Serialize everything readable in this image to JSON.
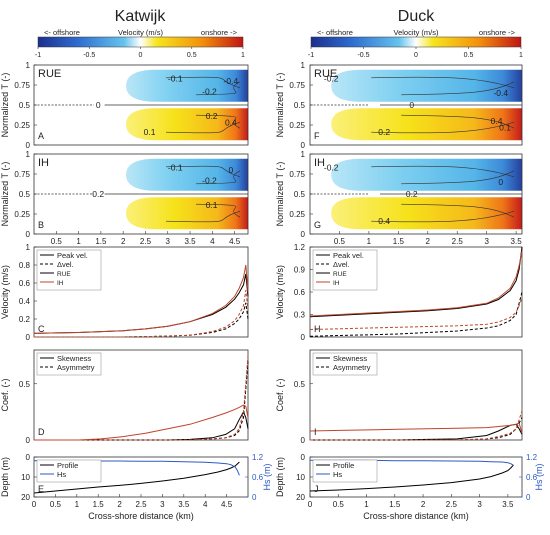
{
  "figure": {
    "columns": [
      {
        "title": "Katwijk",
        "colorbar_label": "Velocity (m/s)",
        "offshore_label": "<- offshore",
        "onshore_label": "onshore ->"
      },
      {
        "title": "Duck",
        "colorbar_label": "Velocity (m/s)",
        "offshore_label": "<- offshore",
        "onshore_label": "onshore ->"
      }
    ],
    "colorbar": {
      "ticks": [
        "-1",
        "-0.5",
        "0",
        "0.5",
        "1"
      ],
      "colors": [
        "#1b2f8f",
        "#2f6fd0",
        "#66c3ee",
        "#ffffff",
        "#f6e51d",
        "#f3900c",
        "#c21414"
      ]
    },
    "x_label": "Cross-shore distance (km)",
    "colors": {
      "series_black": "#000000",
      "series_red": "#c0442a",
      "hs_blue": "#2d59c4"
    }
  },
  "chart_data": [
    {
      "type": "heatmap",
      "panel": "A",
      "site": "Katwijk",
      "method_label": "RUE",
      "xlim": [
        0,
        4.8
      ],
      "ylim": [
        0,
        1
      ],
      "ylabel": "Normalized T (-)",
      "yticks": [
        "0",
        "0.25",
        "0.5",
        "0.75",
        "1"
      ],
      "xticks": [],
      "contour_labels": [
        "-0.1",
        "-0.2",
        "-0.4",
        "0",
        "0.2",
        "0.4",
        "0.1"
      ]
    },
    {
      "type": "heatmap",
      "panel": "B",
      "site": "Katwijk",
      "method_label": "IH",
      "xlim": [
        0,
        4.8
      ],
      "ylim": [
        0,
        1
      ],
      "ylabel": "Normalized T (-)",
      "yticks": [
        "0",
        "0.25",
        "0.5",
        "0.75",
        "1"
      ],
      "xticks": [
        "0.5",
        "1",
        "1.5",
        "2",
        "2.5",
        "3",
        "3.5",
        "4",
        "4.5"
      ],
      "contour_labels": [
        "-0.1",
        "-0.2",
        "0",
        "0.2",
        "0.1"
      ]
    },
    {
      "type": "line",
      "panel": "C",
      "site": "Katwijk",
      "ylabel": "Velocity (m/s)",
      "ylim": [
        0,
        1
      ],
      "yticks": [
        "0",
        "0.2",
        "0.4",
        "0.6",
        "0.8",
        "1"
      ],
      "xlim": [
        0,
        4.8
      ],
      "legend": [
        {
          "label": "Peak vel.",
          "style": "solid"
        },
        {
          "label": "Δvel.",
          "style": "dashed"
        },
        {
          "label": "RUE",
          "style": "black"
        },
        {
          "label": "IH",
          "style": "red"
        }
      ],
      "x": [
        0,
        0.5,
        1,
        1.5,
        2,
        2.5,
        3,
        3.5,
        4,
        4.3,
        4.5,
        4.6,
        4.7,
        4.75,
        4.8
      ],
      "series": [
        {
          "name": "RUE Peak vel.",
          "values": [
            0.04,
            0.045,
            0.05,
            0.06,
            0.07,
            0.09,
            0.12,
            0.17,
            0.25,
            0.33,
            0.42,
            0.49,
            0.58,
            0.7,
            0.45
          ]
        },
        {
          "name": "IH Peak vel.",
          "values": [
            0.04,
            0.045,
            0.05,
            0.06,
            0.07,
            0.09,
            0.12,
            0.17,
            0.26,
            0.35,
            0.45,
            0.54,
            0.66,
            0.8,
            0.5
          ]
        },
        {
          "name": "RUE Δvel.",
          "values": [
            0.0,
            0.0,
            0.0,
            0.0,
            0.0,
            0.005,
            0.01,
            0.02,
            0.05,
            0.09,
            0.15,
            0.2,
            0.28,
            0.38,
            0.2
          ]
        },
        {
          "name": "IH Δvel.",
          "values": [
            0.0,
            0.0,
            0.0,
            0.0,
            0.0,
            0.005,
            0.01,
            0.02,
            0.06,
            0.11,
            0.18,
            0.25,
            0.35,
            0.52,
            0.3
          ]
        }
      ]
    },
    {
      "type": "line",
      "panel": "D",
      "site": "Katwijk",
      "ylabel": "Coef. (-)",
      "ylim": [
        0,
        0.8
      ],
      "yticks": [
        "0",
        "0.5"
      ],
      "xlim": [
        0,
        4.8
      ],
      "legend": [
        {
          "label": "Skewness",
          "style": "solid"
        },
        {
          "label": "Asymmetry",
          "style": "dashed"
        }
      ],
      "x": [
        0,
        0.5,
        1,
        1.5,
        2,
        2.5,
        3,
        3.5,
        4,
        4.3,
        4.5,
        4.6,
        4.7,
        4.75,
        4.8
      ],
      "series": [
        {
          "name": "RUE Skewness",
          "values": [
            0.0,
            0.0,
            0.0,
            0.0,
            0.0,
            0.0,
            0.0,
            0.005,
            0.02,
            0.05,
            0.1,
            0.18,
            0.25,
            0.2,
            0.1
          ]
        },
        {
          "name": "IH Skewness",
          "values": [
            0.0,
            0.0,
            0.0,
            0.01,
            0.03,
            0.06,
            0.1,
            0.14,
            0.2,
            0.24,
            0.27,
            0.29,
            0.31,
            0.3,
            0.2
          ]
        },
        {
          "name": "RUE Asymmetry",
          "values": [
            0.0,
            0.0,
            0.0,
            0.0,
            0.0,
            0.0,
            0.0,
            0.0,
            0.01,
            0.02,
            0.04,
            0.08,
            0.2,
            0.45,
            0.7
          ]
        },
        {
          "name": "IH Asymmetry",
          "values": [
            0.0,
            0.0,
            0.0,
            0.0,
            0.0,
            0.0,
            0.0,
            0.0,
            0.01,
            0.02,
            0.05,
            0.1,
            0.25,
            0.5,
            0.75
          ]
        }
      ]
    },
    {
      "type": "line",
      "panel": "E",
      "site": "Katwijk",
      "ylabel": "Depth (m)",
      "ylabel_right": "Hs (m)",
      "ylim": [
        20,
        0
      ],
      "yticks": [
        "0",
        "10",
        "20"
      ],
      "yticks_right": [
        "0",
        "0.6",
        "1.2"
      ],
      "xlim": [
        0,
        5
      ],
      "xticks": [
        "0",
        "0.5",
        "1",
        "1.5",
        "2",
        "2.5",
        "3",
        "3.5",
        "4",
        "4.5"
      ],
      "legend": [
        {
          "label": "Profile",
          "style": "black"
        },
        {
          "label": "Hs",
          "style": "blue"
        }
      ],
      "x": [
        0,
        0.5,
        1,
        1.5,
        2,
        2.5,
        3,
        3.5,
        4,
        4.3,
        4.5,
        4.6,
        4.7,
        4.75,
        4.8
      ],
      "series": [
        {
          "name": "Profile",
          "axis": "left",
          "values": [
            18,
            17,
            16,
            15,
            14.2,
            13.2,
            12,
            10.6,
            8.8,
            7.5,
            6.3,
            5.5,
            4.5,
            3.5,
            2.5
          ]
        },
        {
          "name": "Hs",
          "axis": "right",
          "values": [
            1.09,
            1.09,
            1.09,
            1.08,
            1.08,
            1.07,
            1.07,
            1.06,
            1.04,
            1.02,
            1.0,
            0.97,
            0.9,
            0.8,
            0.65
          ]
        }
      ]
    },
    {
      "type": "heatmap",
      "panel": "F",
      "site": "Duck",
      "method_label": "RUE",
      "xlim": [
        0,
        3.6
      ],
      "ylim": [
        0,
        1
      ],
      "ylabel": "Normalized T (-)",
      "yticks": [
        "0",
        "0.25",
        "0.5",
        "0.75",
        "1"
      ],
      "xticks": [],
      "contour_labels": [
        "-0.2",
        "-0.4",
        "0",
        "0.2",
        "0.4",
        "0.1"
      ]
    },
    {
      "type": "heatmap",
      "panel": "G",
      "site": "Duck",
      "method_label": "IH",
      "xlim": [
        0,
        3.6
      ],
      "ylim": [
        0,
        1
      ],
      "ylabel": "Normalized T (-)",
      "yticks": [
        "0",
        "0.25",
        "0.5",
        "0.75",
        "1"
      ],
      "xticks": [
        "0.5",
        "1",
        "1.5",
        "2",
        "2.5",
        "3",
        "3.5"
      ],
      "contour_labels": [
        "-0.2",
        "0",
        "0.2",
        "0.4"
      ]
    },
    {
      "type": "line",
      "panel": "H",
      "site": "Duck",
      "ylabel": "Velocity (m/s)",
      "ylim": [
        0,
        1.2
      ],
      "yticks": [
        "0",
        "0.3",
        "0.6",
        "0.9",
        "1.2"
      ],
      "xlim": [
        0,
        3.6
      ],
      "legend": [
        {
          "label": "Peak vel.",
          "style": "solid"
        },
        {
          "label": "Δvel.",
          "style": "dashed"
        },
        {
          "label": "RUE",
          "style": "black"
        },
        {
          "label": "IH",
          "style": "red"
        }
      ],
      "x": [
        0,
        0.5,
        1,
        1.5,
        2,
        2.5,
        3,
        3.2,
        3.4,
        3.5,
        3.55,
        3.6
      ],
      "series": [
        {
          "name": "RUE Peak vel.",
          "values": [
            0.27,
            0.29,
            0.31,
            0.33,
            0.35,
            0.38,
            0.44,
            0.5,
            0.62,
            0.75,
            0.9,
            1.2
          ]
        },
        {
          "name": "IH Peak vel.",
          "values": [
            0.28,
            0.3,
            0.32,
            0.34,
            0.36,
            0.39,
            0.45,
            0.52,
            0.65,
            0.8,
            0.95,
            1.15
          ]
        },
        {
          "name": "RUE Δvel.",
          "values": [
            0.01,
            0.02,
            0.03,
            0.04,
            0.06,
            0.08,
            0.12,
            0.15,
            0.22,
            0.3,
            0.45,
            0.6
          ]
        },
        {
          "name": "IH Δvel.",
          "values": [
            0.1,
            0.11,
            0.12,
            0.13,
            0.14,
            0.15,
            0.17,
            0.2,
            0.26,
            0.33,
            0.42,
            0.52
          ]
        }
      ]
    },
    {
      "type": "line",
      "panel": "I",
      "site": "Duck",
      "ylabel": "Coef. (-)",
      "ylim": [
        0,
        0.8
      ],
      "yticks": [
        "0",
        "0.5"
      ],
      "xlim": [
        0,
        3.6
      ],
      "legend": [
        {
          "label": "Skewness",
          "style": "solid"
        },
        {
          "label": "Asymmetry",
          "style": "dashed"
        }
      ],
      "x": [
        0,
        0.5,
        1,
        1.5,
        2,
        2.5,
        3,
        3.2,
        3.4,
        3.5,
        3.55,
        3.6
      ],
      "series": [
        {
          "name": "RUE Skewness",
          "values": [
            0.0,
            0.0,
            0.0,
            0.0,
            0.005,
            0.01,
            0.04,
            0.08,
            0.13,
            0.14,
            0.1,
            0.05
          ]
        },
        {
          "name": "IH Skewness",
          "values": [
            0.08,
            0.085,
            0.09,
            0.095,
            0.1,
            0.105,
            0.11,
            0.12,
            0.13,
            0.14,
            0.15,
            0.06
          ]
        },
        {
          "name": "RUE Asymmetry",
          "values": [
            0.0,
            0.0,
            0.0,
            0.0,
            0.0,
            0.0,
            0.01,
            0.02,
            0.05,
            0.1,
            0.15,
            0.2
          ]
        },
        {
          "name": "IH Asymmetry",
          "values": [
            0.0,
            0.0,
            0.0,
            0.0,
            0.0,
            0.0,
            0.01,
            0.03,
            0.06,
            0.1,
            0.18,
            0.26
          ]
        }
      ]
    },
    {
      "type": "line",
      "panel": "J",
      "site": "Duck",
      "ylabel": "Depth (m)",
      "ylabel_right": "Hs (m)",
      "ylim": [
        20,
        0
      ],
      "yticks": [
        "0",
        "10",
        "20"
      ],
      "yticks_right": [
        "0",
        "0.6",
        "1.2"
      ],
      "xlim": [
        0,
        3.75
      ],
      "xticks": [
        "0",
        "0.5",
        "1",
        "1.5",
        "2",
        "2.5",
        "3",
        "3.5"
      ],
      "legend": [
        {
          "label": "Profile",
          "style": "black"
        },
        {
          "label": "Hs",
          "style": "blue"
        }
      ],
      "x": [
        0,
        0.5,
        1,
        1.5,
        2,
        2.5,
        3,
        3.2,
        3.4,
        3.5,
        3.55,
        3.6
      ],
      "series": [
        {
          "name": "Profile",
          "axis": "left",
          "values": [
            17,
            16.5,
            15.8,
            15,
            14,
            12.8,
            11,
            9.8,
            8,
            6.8,
            5.5,
            4
          ]
        },
        {
          "name": "Hs",
          "axis": "right",
          "values": [
            1.1,
            1.1,
            1.1,
            1.09,
            1.09,
            1.08,
            1.07,
            1.06,
            1.05,
            1.03,
            1.0,
            0.95
          ]
        }
      ]
    }
  ]
}
